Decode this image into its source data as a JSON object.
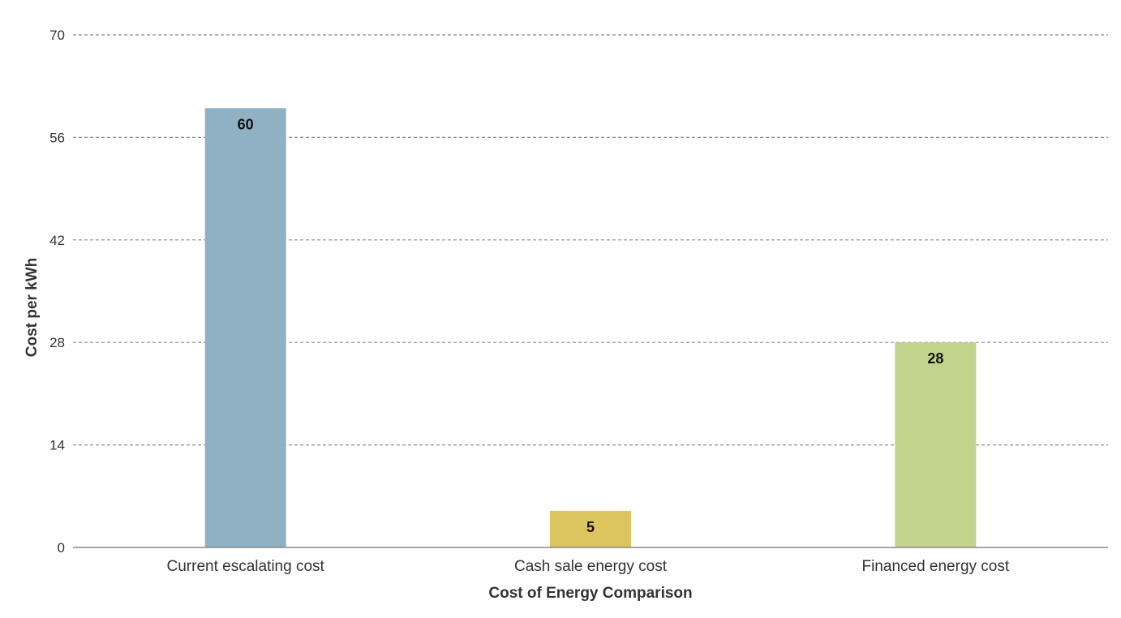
{
  "chart_data": {
    "type": "bar",
    "title": "",
    "xlabel": "Cost of Energy Comparison",
    "ylabel": "Cost per kWh",
    "categories": [
      "Current escalating cost",
      "Cash sale energy cost",
      "Financed energy cost"
    ],
    "values": [
      60,
      5,
      28
    ],
    "data_labels": [
      "60",
      "5",
      "28"
    ],
    "colors": [
      "#8fb1c3",
      "#dcc55e",
      "#c2d48b"
    ],
    "ylim": [
      0,
      70
    ],
    "yticks": [
      0,
      14,
      28,
      42,
      56,
      70
    ],
    "ytick_labels": [
      "0",
      "14",
      "28",
      "42",
      "56",
      "70"
    ],
    "grid": true,
    "legend": "none"
  }
}
